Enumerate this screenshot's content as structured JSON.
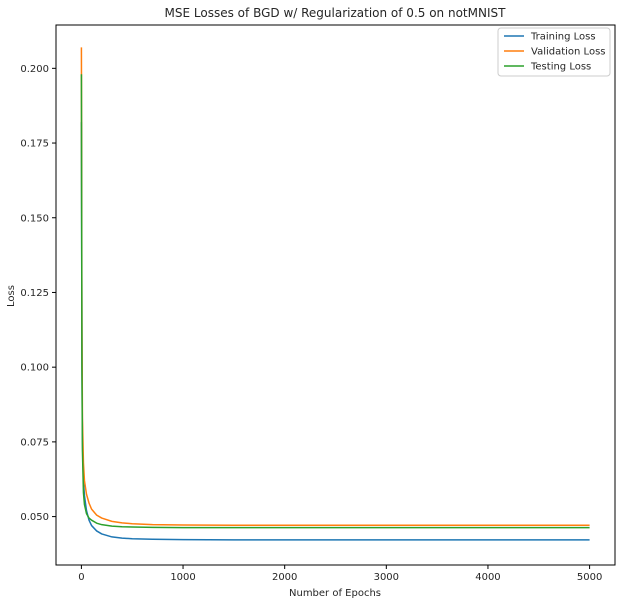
{
  "chart_data": {
    "type": "line",
    "title": "MSE Losses of BGD w/ Regularization of 0.5 on notMNIST",
    "xlabel": "Number of Epochs",
    "ylabel": "Loss",
    "xlim": [
      -250,
      5250
    ],
    "ylim": [
      0.0338,
      0.2145
    ],
    "xticks": [
      0,
      1000,
      2000,
      3000,
      4000,
      5000
    ],
    "xtick_labels": [
      "0",
      "1000",
      "2000",
      "3000",
      "4000",
      "5000"
    ],
    "yticks": [
      0.05,
      0.075,
      0.1,
      0.125,
      0.15,
      0.175,
      0.2
    ],
    "ytick_labels": [
      "0.050",
      "0.075",
      "0.100",
      "0.125",
      "0.150",
      "0.175",
      "0.200"
    ],
    "grid": false,
    "legend_position": "top-right",
    "series": [
      {
        "name": "Training Loss",
        "color": "#1f77b4",
        "x": [
          0,
          5,
          10,
          20,
          30,
          50,
          75,
          100,
          150,
          200,
          300,
          400,
          500,
          700,
          1000,
          1500,
          2000,
          3000,
          4000,
          5000
        ],
        "y": [
          0.182,
          0.105,
          0.076,
          0.062,
          0.057,
          0.052,
          0.0488,
          0.047,
          0.0452,
          0.0442,
          0.0432,
          0.0428,
          0.0426,
          0.0424,
          0.0423,
          0.0422,
          0.0422,
          0.0422,
          0.0422,
          0.0422
        ]
      },
      {
        "name": "Validation Loss",
        "color": "#ff7f0e",
        "x": [
          0,
          5,
          10,
          20,
          30,
          50,
          75,
          100,
          150,
          200,
          300,
          400,
          500,
          700,
          1000,
          1500,
          2000,
          3000,
          4000,
          5000
        ],
        "y": [
          0.207,
          0.115,
          0.083,
          0.068,
          0.062,
          0.0575,
          0.0545,
          0.0525,
          0.0505,
          0.0495,
          0.0484,
          0.0479,
          0.0476,
          0.0473,
          0.0472,
          0.0471,
          0.0471,
          0.0471,
          0.0471,
          0.0471
        ]
      },
      {
        "name": "Testing Loss",
        "color": "#2ca02c",
        "x": [
          0,
          5,
          10,
          20,
          30,
          50,
          75,
          100,
          150,
          200,
          300,
          400,
          500,
          700,
          1000,
          1500,
          2000,
          3000,
          4000,
          5000
        ],
        "y": [
          0.198,
          0.1,
          0.072,
          0.058,
          0.054,
          0.051,
          0.0495,
          0.0488,
          0.0478,
          0.0473,
          0.0468,
          0.0466,
          0.0465,
          0.0464,
          0.0463,
          0.0463,
          0.0463,
          0.0463,
          0.0463,
          0.0463
        ]
      }
    ]
  }
}
